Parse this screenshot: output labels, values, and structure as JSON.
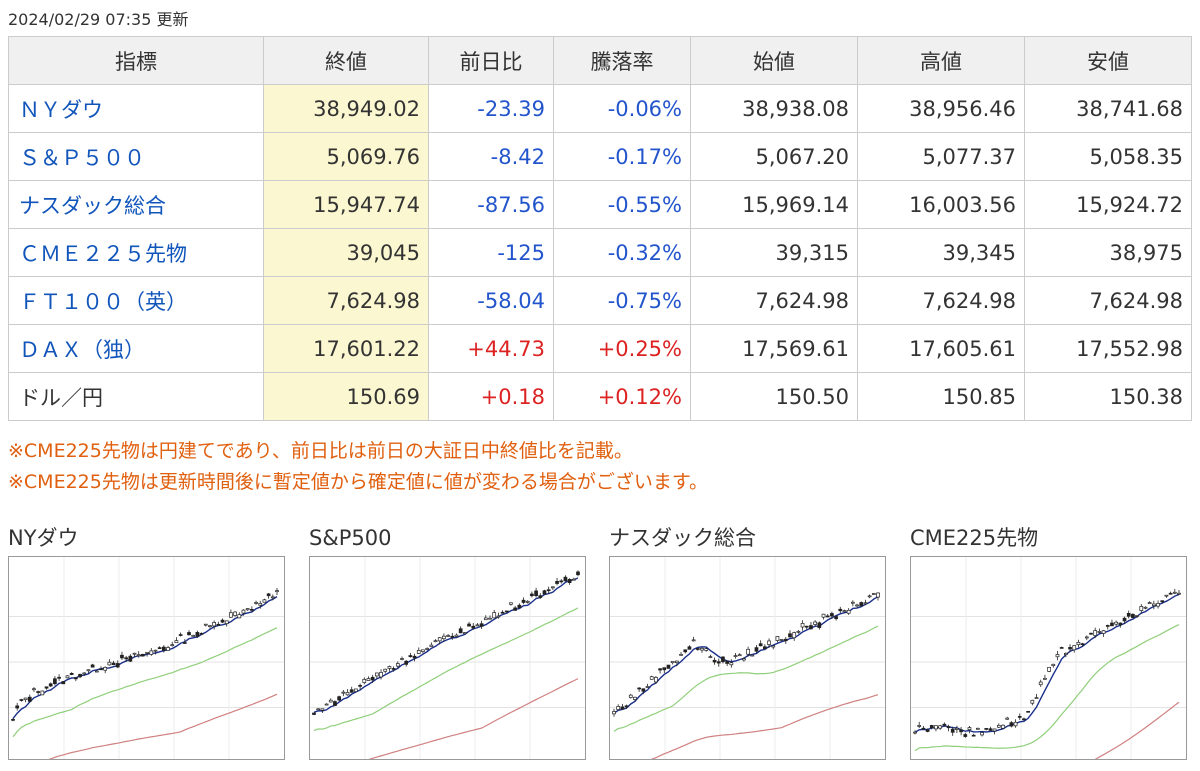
{
  "updated": "2024/02/29 07:35 更新",
  "headers": [
    "指標",
    "終値",
    "前日比",
    "騰落率",
    "始値",
    "高値",
    "安値"
  ],
  "rows": [
    {
      "name": "ＮＹダウ",
      "close": "38,949.02",
      "change": "-23.39",
      "rate": "-0.06%",
      "open": "38,938.08",
      "high": "38,956.46",
      "low": "38,741.68",
      "dir": "down",
      "link": true
    },
    {
      "name": "Ｓ＆Ｐ５００",
      "close": "5,069.76",
      "change": "-8.42",
      "rate": "-0.17%",
      "open": "5,067.20",
      "high": "5,077.37",
      "low": "5,058.35",
      "dir": "down",
      "link": true
    },
    {
      "name": "ナスダック総合",
      "close": "15,947.74",
      "change": "-87.56",
      "rate": "-0.55%",
      "open": "15,969.14",
      "high": "16,003.56",
      "low": "15,924.72",
      "dir": "down",
      "link": true
    },
    {
      "name": "ＣＭＥ２２５先物",
      "close": "39,045",
      "change": "-125",
      "rate": "-0.32%",
      "open": "39,315",
      "high": "39,345",
      "low": "38,975",
      "dir": "down",
      "link": true
    },
    {
      "name": "ＦＴ１００（英）",
      "close": "7,624.98",
      "change": "-58.04",
      "rate": "-0.75%",
      "open": "7,624.98",
      "high": "7,624.98",
      "low": "7,624.98",
      "dir": "down",
      "link": true
    },
    {
      "name": "ＤＡＸ（独）",
      "close": "17,601.22",
      "change": "+44.73",
      "rate": "+0.25%",
      "open": "17,569.61",
      "high": "17,605.61",
      "low": "17,552.98",
      "dir": "up",
      "link": true
    },
    {
      "name": "ドル／円",
      "close": "150.69",
      "change": "+0.18",
      "rate": "+0.12%",
      "open": "150.50",
      "high": "150.85",
      "low": "150.38",
      "dir": "up",
      "link": false
    }
  ],
  "notes": [
    "※CME225先物は円建てであり、前日比は前日の大証日中終値比を記載。",
    "※CME225先物は更新時間後に暫定値から確定値に値が変わる場合がございます。"
  ],
  "charts": [
    {
      "title": "NYダウ",
      "start": 0.18,
      "end": 0.86,
      "shape": "nydow"
    },
    {
      "title": "S&P500",
      "start": 0.22,
      "end": 0.88,
      "shape": "sp500"
    },
    {
      "title": "ナスダック総合",
      "start": 0.22,
      "end": 0.86,
      "shape": "nasdaq"
    },
    {
      "title": "CME225先物",
      "start": 0.12,
      "end": 0.88,
      "shape": "cme"
    }
  ],
  "colors": {
    "link": "#1155bb",
    "down": "#2255cc",
    "up": "#dd2222",
    "note": "#e06010",
    "highlight": "#fbf7d0",
    "header_bg": "#f0f0f0",
    "ma_short": "#1a2f8a",
    "ma_mid": "#8fcf7a",
    "ma_long": "#d08080"
  }
}
